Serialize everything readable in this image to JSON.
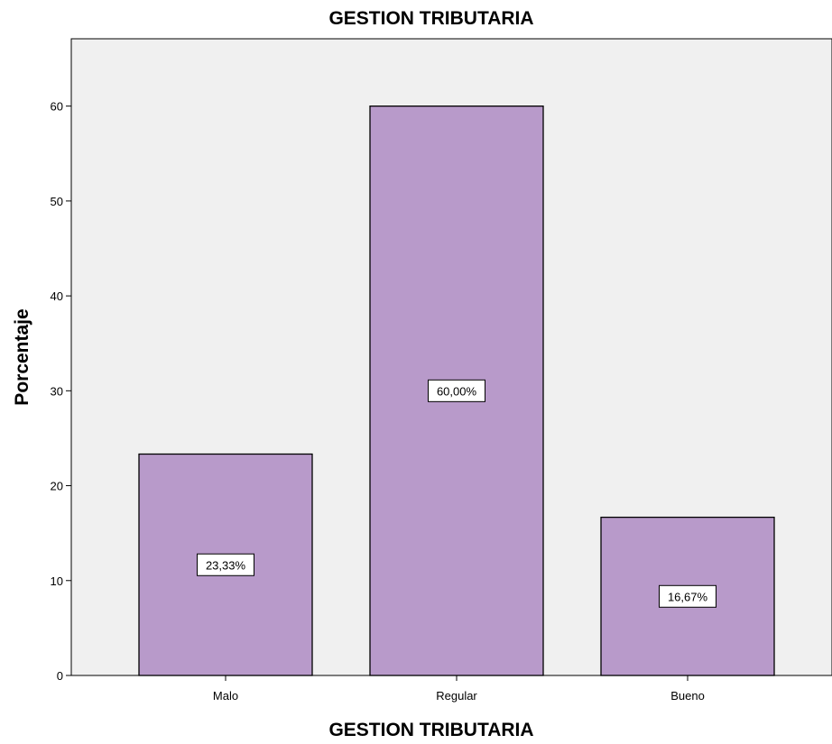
{
  "chart_data": {
    "type": "bar",
    "title": "GESTION TRIBUTARIA",
    "xlabel": "GESTION TRIBUTARIA",
    "ylabel": "Porcentaje",
    "categories": [
      "Malo",
      "Regular",
      "Bueno"
    ],
    "values": [
      23.33,
      60.0,
      16.67
    ],
    "data_labels": [
      "23,33%",
      "60,00%",
      "16,67%"
    ],
    "ylim": [
      0,
      67
    ],
    "yticks": [
      0,
      10,
      20,
      30,
      40,
      50,
      60
    ],
    "ytick_labels": [
      "0",
      "10",
      "20",
      "30",
      "40",
      "50",
      "60"
    ],
    "grid": false,
    "legend": "none",
    "colors": {
      "bar_fill": "#b89aca",
      "bar_stroke": "#000000",
      "plot_background": "#f0f0f0",
      "page_background": "#ffffff"
    }
  }
}
